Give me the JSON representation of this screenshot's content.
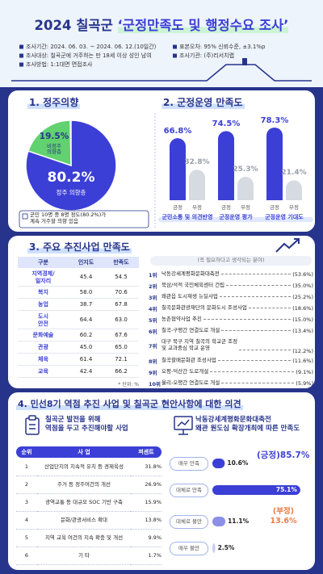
{
  "header": {
    "title_year": "2024 칠곡군",
    "title_main": "‘군정만족도 및 행정수요 조사’",
    "info_left": [
      "조사기간: 2024. 06. 03. ~ 2024. 06. 12.(10일간)",
      "조사대상: 칠곡군에 거주하는 만 18세 이상 성인 남여",
      "조사방법: 1:1대면 면접조사"
    ],
    "info_right": [
      "표본오차: 95% 신뢰수준, ±3.1%p",
      "조사기관: (주)리서치랩"
    ]
  },
  "chart_data": [
    {
      "type": "pie",
      "title": "1. 정주의향",
      "categories": [
        "정주 의향층",
        "비정주\n의향층"
      ],
      "values": [
        80.2,
        19.5
      ],
      "value_labels": [
        "80.2%",
        "19.5%"
      ],
      "colors": [
        "#3b3fd6",
        "#62d16f"
      ],
      "note": "군민 10명 중 8명 정도(80.2%)가\n계속 거주할 의향 있음"
    },
    {
      "type": "bar",
      "title": "2. 군정운영 만족도",
      "categories": [
        "군민소통 및 의견반영",
        "군정운영 평가",
        "군정운영 기대도"
      ],
      "series": [
        {
          "name": "긍정",
          "color": "#3b3fd6",
          "values": [
            66.8,
            74.5,
            78.3
          ],
          "value_labels": [
            "66.8%",
            "74.5%",
            "78.3%"
          ]
        },
        {
          "name": "부정",
          "color": "#d6dae1",
          "values": [
            32.8,
            25.3,
            21.4
          ],
          "value_labels": [
            "32.8%",
            "25.3%",
            "21.4%"
          ]
        }
      ]
    },
    {
      "type": "hbar",
      "title": "낙동강세계평화문화대축전\n왜관 원도심 확장개최에 따른 만족도",
      "categories": [
        "매우 만족",
        "대체로 만족",
        "대체로 불만",
        "매우 불만"
      ],
      "values": [
        10.6,
        75.1,
        11.1,
        2.5
      ],
      "value_labels": [
        "10.6%",
        "75.1%",
        "11.1%",
        "2.5%"
      ],
      "colors": [
        "#3b3fd6",
        "#3b3fd6",
        "#8b8fe6",
        "#c9ccf2"
      ],
      "annotations": [
        "(긍정)85.7%",
        "(부정)\n13.6%"
      ]
    }
  ],
  "section3": {
    "title": "3. 주요 추진사업 만족도",
    "table": {
      "header": [
        "구분",
        "인지도",
        "만족도"
      ],
      "rows": [
        [
          "지역경제/\n일자리",
          "45.4",
          "54.5"
        ],
        [
          "복지",
          "58.0",
          "70.6"
        ],
        [
          "농업",
          "38.7",
          "67.8"
        ],
        [
          "도시\n안전",
          "64.4",
          "63.0"
        ],
        [
          "문화예술",
          "60.2",
          "67.6"
        ],
        [
          "관광",
          "45.0",
          "65.0"
        ],
        [
          "체육",
          "61.4",
          "72.1"
        ],
        [
          "교육",
          "42.4",
          "66.2"
        ]
      ]
    },
    "unit_note": "* 단위: %",
    "ranking": {
      "header": "(꼭 필요하다고 생각되는 분야)",
      "items": [
        {
          "rank": "1위",
          "name": "낙동강세계평화문화대축전",
          "value": "(53.6%)"
        },
        {
          "rank": "2위",
          "name": "북삼/석적 국민체육센터 건립",
          "value": "(35.0%)"
        },
        {
          "rank": "3위",
          "name": "왜관읍 도시재생 뉴딜사업",
          "value": "(25.2%)"
        },
        {
          "rank": "4위",
          "name": "칠곡문화관광재단의 문화도시 조성사업",
          "value": "(18.6%)"
        },
        {
          "rank": "5위",
          "name": "농촌협약사업 추진",
          "value": "(15.0%)"
        },
        {
          "rank": "6위",
          "name": "칠곡-구평간 연결도로 개설",
          "value": "(13.4%)"
        },
        {
          "rank": "7위",
          "name": "대구 북구 지역 칠곡의 학교군 조정\n및 교과중심 학교 운영",
          "value": "(12.2%)"
        },
        {
          "rank": "8위",
          "name": "칠곡할매문화관 조성사업",
          "value": "(11.6%)"
        },
        {
          "rank": "9위",
          "name": "오평-덕산간 도로개설",
          "value": "(9.1%)"
        },
        {
          "rank": "10위",
          "name": "율리-오평간 연결도로 개설",
          "value": "(5.9%)"
        }
      ]
    }
  },
  "section4": {
    "title": "4. 민선8기 역점 추진 사업 및 칠곡군 현안사항에 대한 의견",
    "left": {
      "title": "칠곡군 발전을 위해\n역점을 두고 추진해야할 사업",
      "table": {
        "header": [
          "순위",
          "사 업",
          "퍼센트"
        ],
        "rows": [
          [
            "1",
            "산업단지의 지속적 유치 등 경제육성",
            "31.8%"
          ],
          [
            "2",
            "주거 등 정주여건의 개선",
            "26.9%"
          ],
          [
            "3",
            "광역교통 등 대규모 SOC 기반 구축",
            "15.9%"
          ],
          [
            "4",
            "문화/관광서비스 확대",
            "13.8%"
          ],
          [
            "5",
            "지역 교육 여건의 지속 확충 및 개선",
            "9.9%"
          ],
          [
            "6",
            "기 타",
            "1.7%"
          ]
        ]
      }
    }
  }
}
